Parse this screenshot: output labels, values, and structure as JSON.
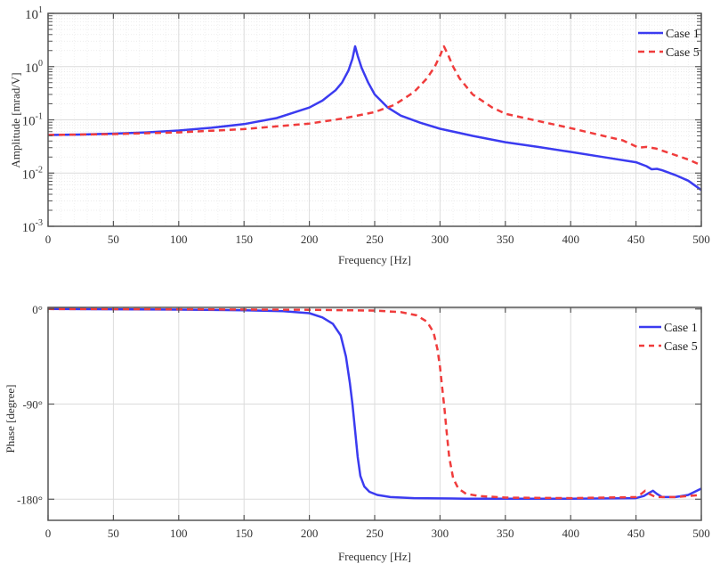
{
  "chart_data": [
    {
      "type": "line",
      "title": "",
      "xlabel": "Frequency [Hz]",
      "ylabel": "Amplitude [mrad/V]",
      "yscale": "log",
      "xlim": [
        0,
        500
      ],
      "ylim": [
        0.001,
        10
      ],
      "xticks": [
        0,
        50,
        100,
        150,
        200,
        250,
        300,
        350,
        400,
        450,
        500
      ],
      "xtick_labels": [
        "0",
        "50",
        "100",
        "150",
        "200",
        "250",
        "300",
        "350",
        "400",
        "450",
        "500"
      ],
      "yticks": [
        10,
        1,
        0.1,
        0.01,
        0.001
      ],
      "ytick_labels": [
        {
          "base": "10",
          "exp": "1"
        },
        {
          "base": "10",
          "exp": "0"
        },
        {
          "base": "10",
          "exp": "-1"
        },
        {
          "base": "10",
          "exp": "-2"
        },
        {
          "base": "10",
          "exp": "-3"
        }
      ],
      "grid": true,
      "minor_grid": true,
      "legend_position": "upper right",
      "series": [
        {
          "name": "Case 1",
          "color": "#3b3bf0",
          "style": "solid",
          "x": [
            0,
            25,
            50,
            75,
            100,
            125,
            150,
            175,
            200,
            210,
            220,
            225,
            230,
            233,
            235,
            237,
            240,
            245,
            250,
            260,
            270,
            285,
            300,
            325,
            350,
            375,
            400,
            425,
            450,
            458,
            462,
            466,
            470,
            480,
            490,
            500
          ],
          "values": [
            0.052,
            0.053,
            0.055,
            0.058,
            0.063,
            0.071,
            0.083,
            0.108,
            0.17,
            0.23,
            0.36,
            0.5,
            0.85,
            1.4,
            2.4,
            1.6,
            0.95,
            0.5,
            0.3,
            0.17,
            0.12,
            0.088,
            0.068,
            0.05,
            0.038,
            0.031,
            0.025,
            0.02,
            0.016,
            0.0135,
            0.0118,
            0.012,
            0.0113,
            0.0092,
            0.0072,
            0.0048
          ]
        },
        {
          "name": "Case 5",
          "color": "#f03c3c",
          "style": "dashed",
          "x": [
            0,
            50,
            100,
            150,
            200,
            225,
            250,
            265,
            280,
            290,
            296,
            300,
            303,
            306,
            310,
            315,
            325,
            340,
            350,
            375,
            400,
            425,
            440,
            452,
            458,
            465,
            475,
            490,
            500
          ],
          "values": [
            0.052,
            0.054,
            0.058,
            0.067,
            0.085,
            0.105,
            0.14,
            0.19,
            0.33,
            0.6,
            1.0,
            1.6,
            2.4,
            1.7,
            1.0,
            0.6,
            0.3,
            0.17,
            0.13,
            0.095,
            0.07,
            0.05,
            0.041,
            0.03,
            0.031,
            0.029,
            0.024,
            0.018,
            0.014
          ]
        }
      ]
    },
    {
      "type": "line",
      "title": "",
      "xlabel": "Frequency [Hz]",
      "ylabel": "Phase [degree]",
      "xlim": [
        0,
        500
      ],
      "ylim": [
        -200,
        1.5
      ],
      "xticks": [
        0,
        50,
        100,
        150,
        200,
        250,
        300,
        350,
        400,
        450,
        500
      ],
      "xtick_labels": [
        "0",
        "50",
        "100",
        "150",
        "200",
        "250",
        "300",
        "350",
        "400",
        "450",
        "500"
      ],
      "yticks": [
        0,
        -90,
        -180
      ],
      "ytick_labels": [
        "0°",
        "-90°",
        "-180°"
      ],
      "grid": true,
      "legend_position": "upper right",
      "series": [
        {
          "name": "Case 1",
          "color": "#3b3bf0",
          "style": "solid",
          "x": [
            0,
            50,
            100,
            150,
            180,
            200,
            210,
            218,
            224,
            228,
            231,
            233,
            235,
            237,
            239,
            242,
            246,
            252,
            262,
            280,
            320,
            400,
            450,
            456,
            460,
            463,
            466,
            470,
            480,
            490,
            500
          ],
          "values": [
            0,
            -0.3,
            -0.6,
            -1.2,
            -2,
            -4,
            -8,
            -14,
            -25,
            -45,
            -70,
            -90,
            -115,
            -140,
            -158,
            -168,
            -173,
            -176,
            -178,
            -179,
            -179.5,
            -179.5,
            -179,
            -177,
            -174,
            -172,
            -175,
            -178,
            -178,
            -176,
            -170
          ]
        },
        {
          "name": "Case 5",
          "color": "#f03c3c",
          "style": "dashed",
          "x": [
            0,
            100,
            200,
            250,
            270,
            282,
            290,
            295,
            298,
            300,
            302,
            303.5,
            305,
            307,
            310,
            314,
            320,
            330,
            350,
            400,
            450,
            454,
            457,
            460,
            465,
            480,
            500
          ],
          "values": [
            0,
            -0.3,
            -0.8,
            -1.5,
            -3,
            -6,
            -12,
            -22,
            -38,
            -55,
            -78,
            -95,
            -115,
            -140,
            -160,
            -170,
            -175,
            -177,
            -178.5,
            -179,
            -178,
            -175,
            -172,
            -175,
            -178,
            -178,
            -176
          ]
        }
      ]
    }
  ]
}
